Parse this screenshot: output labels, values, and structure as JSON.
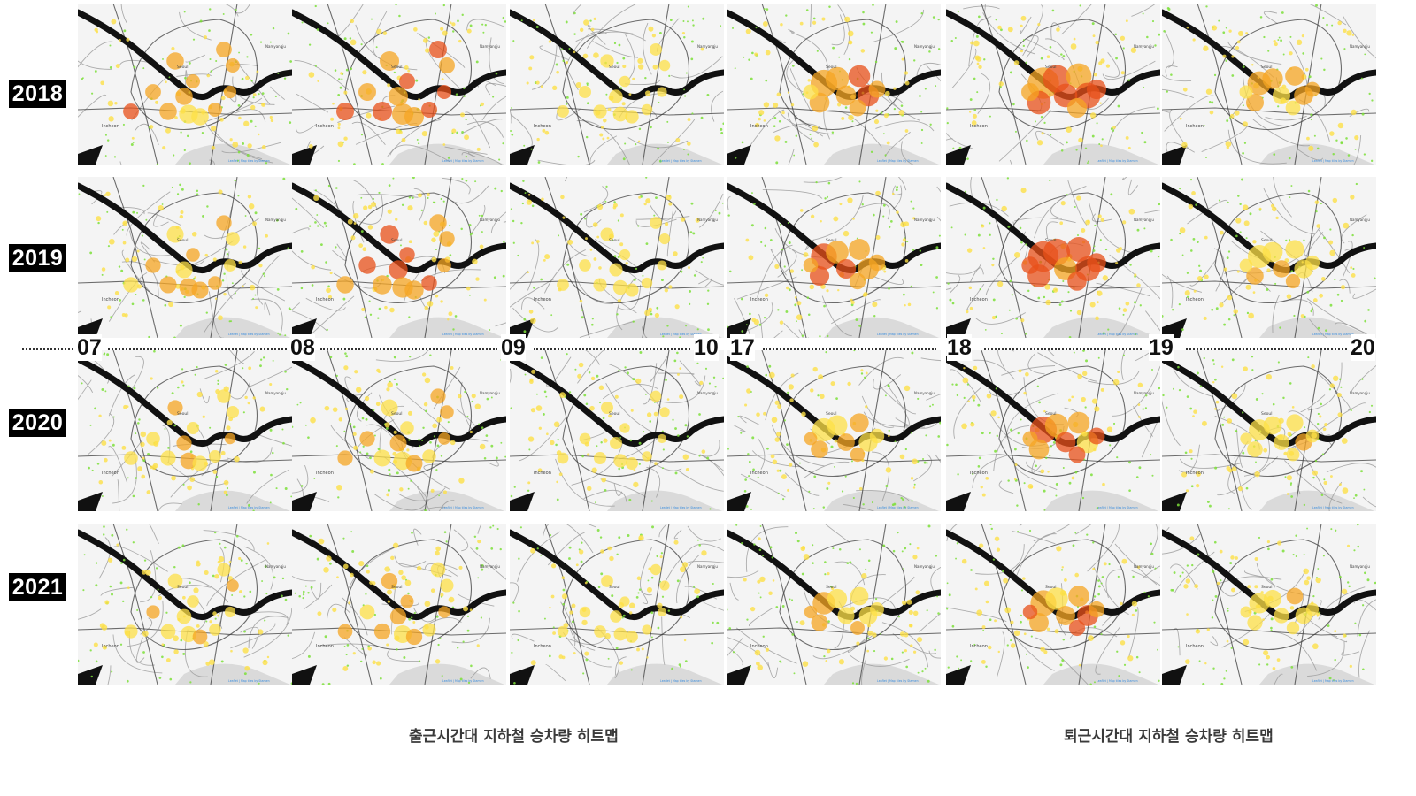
{
  "rows": [
    {
      "year": "2018",
      "intensity": 1.0
    },
    {
      "year": "2019",
      "intensity": 0.95
    },
    {
      "year": "2020",
      "intensity": 0.75
    },
    {
      "year": "2021",
      "intensity": 0.7
    }
  ],
  "hour_labels": [
    "07",
    "08",
    "09",
    "10",
    "17",
    "18",
    "19",
    "20"
  ],
  "columns": [
    {
      "period": "morning",
      "intensity": 0.8
    },
    {
      "period": "morning",
      "intensity": 1.0
    },
    {
      "period": "morning",
      "intensity": 0.45
    },
    {
      "period": "evening",
      "intensity": 0.9
    },
    {
      "period": "evening",
      "intensity": 1.2
    },
    {
      "period": "evening",
      "intensity": 0.7
    }
  ],
  "map_labels": {
    "city": "Incheon",
    "center": "Seoul",
    "east": "Namyangju",
    "attribution": "Leaflet | Map tiles by Stamen"
  },
  "captions": {
    "morning": "출근시간대 지하철 승차량 히트맵",
    "evening": "퇴근시간대 지하철 승차량 히트맵"
  },
  "colors": {
    "divider": "#3a8dde",
    "heat_low": "#fde047",
    "heat_mid": "#f5a623",
    "heat_high": "#e8501a",
    "station_dot": "#7ddf3a"
  }
}
